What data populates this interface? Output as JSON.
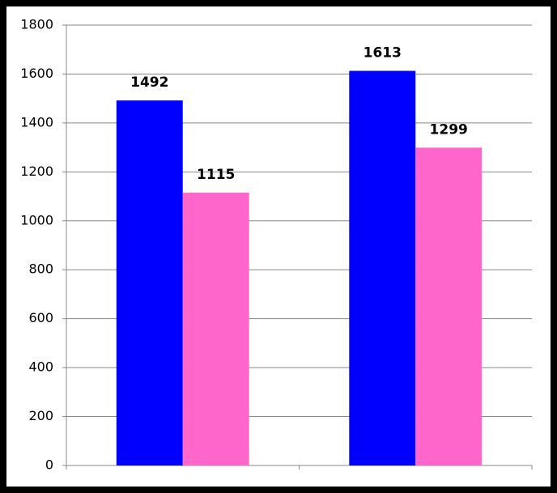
{
  "chart_data": {
    "type": "bar",
    "categories": [
      null,
      null
    ],
    "series": [
      {
        "color": "#0000ff",
        "values": [
          1492,
          1613
        ]
      },
      {
        "color": "#ff66cc",
        "values": [
          1115,
          1299
        ]
      }
    ],
    "ylim": [
      0,
      1800
    ],
    "yticks": [
      0,
      200,
      400,
      600,
      800,
      1000,
      1200,
      1400,
      1600,
      1800
    ],
    "grid": true,
    "data_labels": true
  }
}
